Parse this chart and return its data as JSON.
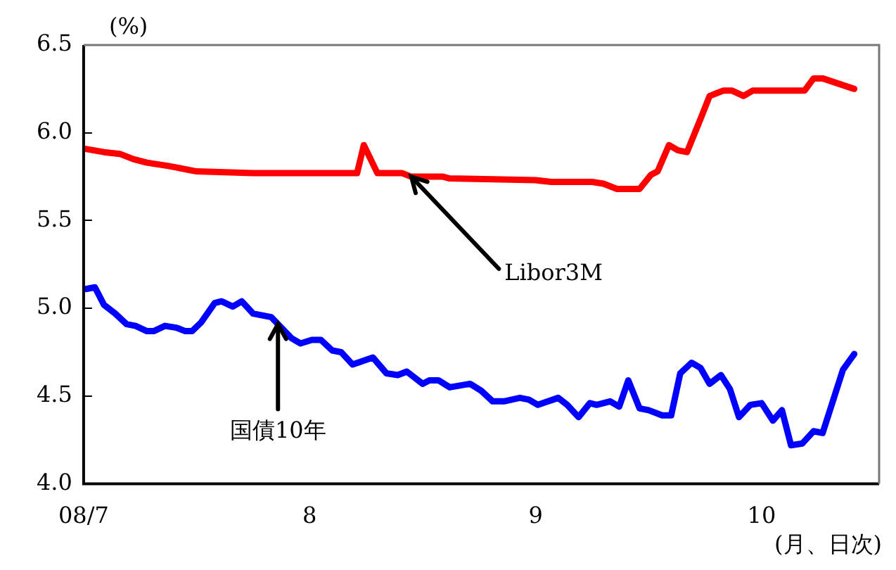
{
  "chart_data": {
    "type": "line",
    "ylabel": "(%)",
    "xlabel": "(月、日次)",
    "xlim": [
      7,
      10.52
    ],
    "xticks": [
      {
        "value": 7,
        "label": "08/7"
      },
      {
        "value": 8,
        "label": "8"
      },
      {
        "value": 9,
        "label": "9"
      },
      {
        "value": 10,
        "label": "10"
      }
    ],
    "ylim": [
      4,
      6.5
    ],
    "yticks": [
      {
        "value": 4,
        "label": "4.0"
      },
      4.5,
      {
        "value": 5,
        "label": "5.0"
      },
      5.5,
      {
        "value": 6,
        "label": "6.0"
      },
      6.5
    ],
    "grid": false,
    "legend": false,
    "marker": "none",
    "line_style": "solid",
    "series": [
      {
        "color": "#ff0000",
        "x": [
          7.0,
          7.09,
          7.16,
          7.22,
          7.28,
          7.38,
          7.5,
          7.75,
          7.94,
          8.17,
          8.21,
          8.24,
          8.3,
          8.41,
          8.45,
          8.59,
          8.62,
          9.0,
          9.07,
          9.25,
          9.3,
          9.36,
          9.46,
          9.51,
          9.54,
          9.59,
          9.63,
          9.67,
          9.73,
          9.77,
          9.83,
          9.87,
          9.92,
          9.96,
          10.19,
          10.23,
          10.27,
          10.41
        ],
        "values": [
          5.91,
          5.89,
          5.88,
          5.85,
          5.83,
          5.81,
          5.78,
          5.77,
          5.77,
          5.77,
          5.77,
          5.93,
          5.77,
          5.77,
          5.75,
          5.75,
          5.74,
          5.73,
          5.72,
          5.72,
          5.71,
          5.68,
          5.68,
          5.76,
          5.78,
          5.93,
          5.9,
          5.89,
          6.08,
          6.21,
          6.24,
          6.24,
          6.21,
          6.24,
          6.24,
          6.31,
          6.31,
          6.25
        ]
      },
      {
        "color": "#0000ff",
        "x": [
          7.01,
          7.05,
          7.09,
          7.14,
          7.19,
          7.23,
          7.28,
          7.31,
          7.36,
          7.41,
          7.45,
          7.48,
          7.52,
          7.58,
          7.61,
          7.66,
          7.7,
          7.75,
          7.83,
          7.86,
          7.92,
          7.96,
          8.01,
          8.05,
          8.1,
          8.14,
          8.19,
          8.28,
          8.34,
          8.39,
          8.43,
          8.5,
          8.53,
          8.57,
          8.62,
          8.71,
          8.76,
          8.81,
          8.86,
          8.93,
          8.97,
          9.01,
          9.1,
          9.14,
          9.19,
          9.24,
          9.27,
          9.33,
          9.37,
          9.41,
          9.46,
          9.5,
          9.56,
          9.6,
          9.64,
          9.69,
          9.73,
          9.77,
          9.82,
          9.86,
          9.9,
          9.95,
          10.0,
          10.05,
          10.09,
          10.13,
          10.18,
          10.23,
          10.27,
          10.32,
          10.36,
          10.41
        ],
        "values": [
          5.11,
          5.12,
          5.02,
          4.97,
          4.91,
          4.9,
          4.87,
          4.87,
          4.9,
          4.89,
          4.87,
          4.87,
          4.92,
          5.03,
          5.04,
          5.01,
          5.04,
          4.97,
          4.95,
          4.91,
          4.83,
          4.8,
          4.82,
          4.82,
          4.76,
          4.75,
          4.68,
          4.72,
          4.63,
          4.62,
          4.64,
          4.57,
          4.59,
          4.59,
          4.55,
          4.57,
          4.53,
          4.47,
          4.47,
          4.49,
          4.48,
          4.45,
          4.49,
          4.45,
          4.38,
          4.46,
          4.45,
          4.47,
          4.44,
          4.59,
          4.43,
          4.42,
          4.39,
          4.39,
          4.63,
          4.69,
          4.66,
          4.57,
          4.62,
          4.54,
          4.38,
          4.45,
          4.46,
          4.36,
          4.42,
          4.22,
          4.23,
          4.3,
          4.29,
          4.49,
          4.65,
          4.74
        ]
      }
    ],
    "annotations": [
      {
        "text": "Libor3M",
        "x": 8.45,
        "y": 5.75
      },
      {
        "text": "国債10年",
        "x": 7.86,
        "y": 4.91
      }
    ]
  }
}
